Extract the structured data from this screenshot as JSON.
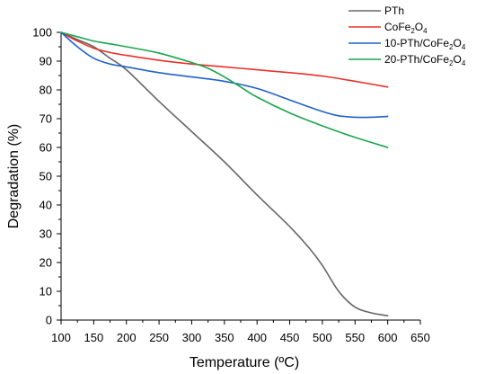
{
  "chart_data": {
    "type": "line",
    "title": "",
    "xlabel": "Temperature (ºC)",
    "ylabel": "Degradation (%)",
    "xlim": [
      100,
      650
    ],
    "ylim": [
      0,
      100
    ],
    "xticks": [
      100,
      150,
      200,
      250,
      300,
      350,
      400,
      450,
      500,
      550,
      600,
      650
    ],
    "yticks": [
      0,
      10,
      20,
      30,
      40,
      50,
      60,
      70,
      80,
      90,
      100
    ],
    "grid": false,
    "legend_position": "top-right",
    "series": [
      {
        "name": "PTh",
        "color": "#666666",
        "x": [
          100,
          125,
          150,
          175,
          200,
          250,
          300,
          350,
          400,
          450,
          480,
          500,
          525,
          550,
          575,
          600
        ],
        "y": [
          100,
          97.5,
          95,
          91,
          87,
          76,
          65.5,
          55,
          43.5,
          32.5,
          25,
          19,
          10,
          4.5,
          2.5,
          1.5
        ]
      },
      {
        "name": "CoFe2O4",
        "color": "#e8302a",
        "x": [
          100,
          125,
          150,
          175,
          200,
          250,
          300,
          350,
          400,
          450,
          500,
          550,
          600
        ],
        "y": [
          100,
          97,
          94.5,
          93,
          92,
          90.3,
          89,
          88,
          87,
          86,
          84.8,
          83,
          81
        ]
      },
      {
        "name": "10-PTh/CoFe2O4",
        "color": "#1f62c9",
        "x": [
          100,
          125,
          150,
          175,
          200,
          250,
          300,
          350,
          400,
          450,
          500,
          525,
          550,
          575,
          600
        ],
        "y": [
          100,
          95,
          91,
          89,
          88,
          86,
          84.5,
          83,
          80.5,
          76.5,
          72.5,
          71,
          70.5,
          70.5,
          70.8
        ]
      },
      {
        "name": "20-PTh/CoFe2O4",
        "color": "#1aa64b",
        "x": [
          100,
          125,
          150,
          175,
          200,
          250,
          300,
          325,
          350,
          375,
          400,
          450,
          500,
          550,
          600
        ],
        "y": [
          100,
          98.5,
          97,
          96,
          95,
          92.8,
          89.5,
          87.5,
          84.5,
          81,
          77.5,
          72,
          67.5,
          63.5,
          60
        ]
      }
    ],
    "legend": [
      {
        "base": "PTh",
        "sub": "",
        "mid": "",
        "sub2": ""
      },
      {
        "base": "CoFe",
        "sub": "2",
        "mid": "O",
        "sub2": "4"
      },
      {
        "base": "10-PTh/CoFe",
        "sub": "2",
        "mid": "O",
        "sub2": "4"
      },
      {
        "base": "20-PTh/CoFe",
        "sub": "2",
        "mid": "O",
        "sub2": "4"
      }
    ]
  }
}
